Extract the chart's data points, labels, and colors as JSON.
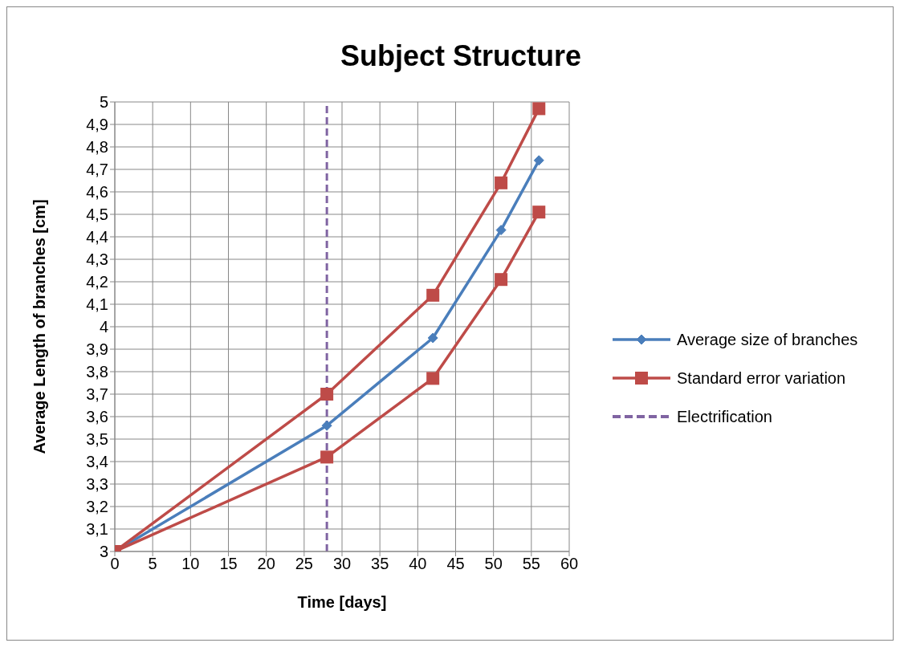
{
  "chart_data": {
    "type": "line",
    "title": "Subject Structure",
    "xlabel": "Time [days]",
    "ylabel": "Average Length of branches [cm]",
    "xlim": [
      0,
      60
    ],
    "xticks": [
      0,
      5,
      10,
      15,
      20,
      25,
      30,
      35,
      40,
      45,
      50,
      55,
      60
    ],
    "ylim": [
      3,
      5
    ],
    "yticks": [
      {
        "value": 3,
        "label": "3"
      },
      {
        "value": 3.1,
        "label": "3,1"
      },
      {
        "value": 3.2,
        "label": "3,2"
      },
      {
        "value": 3.3,
        "label": "3,3"
      },
      {
        "value": 3.4,
        "label": "3,4"
      },
      {
        "value": 3.5,
        "label": "3,5"
      },
      {
        "value": 3.6,
        "label": "3,6"
      },
      {
        "value": 3.7,
        "label": "3,7"
      },
      {
        "value": 3.8,
        "label": "3,8"
      },
      {
        "value": 3.9,
        "label": "3,9"
      },
      {
        "value": 4,
        "label": "4"
      },
      {
        "value": 4.1,
        "label": "4,1"
      },
      {
        "value": 4.2,
        "label": "4,2"
      },
      {
        "value": 4.3,
        "label": "4,3"
      },
      {
        "value": 4.4,
        "label": "4,4"
      },
      {
        "value": 4.5,
        "label": "4,5"
      },
      {
        "value": 4.6,
        "label": "4,6"
      },
      {
        "value": 4.7,
        "label": "4,7"
      },
      {
        "value": 4.8,
        "label": "4,8"
      },
      {
        "value": 4.9,
        "label": "4,9"
      },
      {
        "value": 5,
        "label": "5"
      }
    ],
    "x": [
      0,
      28,
      42,
      51,
      56
    ],
    "series": [
      {
        "name": "Average size of branches",
        "color": "#4a7ebb",
        "marker": "diamond",
        "values": [
          3,
          3.56,
          3.95,
          4.43,
          4.74
        ]
      },
      {
        "name": "Standard error variation",
        "color": "#be4b48",
        "marker": "square",
        "values": [
          3,
          3.7,
          4.14,
          4.64,
          4.97
        ]
      },
      {
        "color": "#be4b48",
        "marker": "square",
        "values": [
          3,
          3.42,
          3.77,
          4.21,
          4.51
        ]
      },
      {
        "name": "Electrification",
        "color": "#8064a2",
        "marker": "none",
        "line_style": "dashed",
        "x": [
          28,
          28
        ],
        "values": [
          3,
          5
        ]
      }
    ],
    "grid": true,
    "legend": "right",
    "line_style": "solid"
  }
}
